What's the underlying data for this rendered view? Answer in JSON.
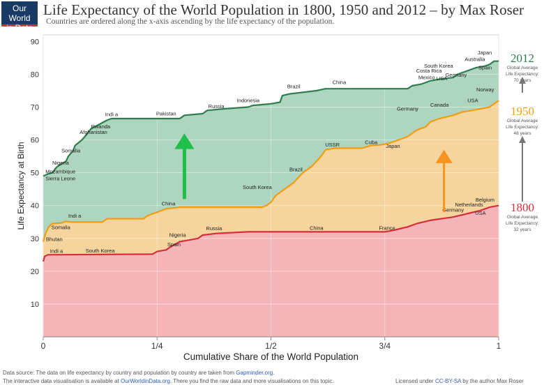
{
  "logo": {
    "line1": "Our World",
    "line2": "in Data"
  },
  "header": {
    "title": "Life Expectancy of the World Population in 1800, 1950 and 2012 – by Max Roser",
    "subtitle": "Countries are ordered along the x-axis ascending by the life expectancy of the population."
  },
  "footer": {
    "source_prefix": "Data source: The data on life expectancy by country and population by country are taken from ",
    "source_link": "Gapminder.org",
    "source_suffix": ".",
    "interactive_prefix": "The interactive data visualisation is available at ",
    "interactive_link": "OurWorldinData.org",
    "interactive_suffix": ". There you find the raw data and more visualisations on this topic.",
    "license_prefix": "Licensed under ",
    "license_link": "CC-BY-SA",
    "license_suffix": " by the author Max Roser"
  },
  "colors": {
    "s2012": "#2e7d4f",
    "s1950": "#f39c12",
    "s1800": "#d62d3a",
    "fill2012": "#a9d3bd",
    "fill1950": "#f9d49b",
    "fill1800": "#f3b3bb",
    "arrow_green": "#1fbf4a",
    "arrow_orange": "#f7931e",
    "arrow_grey": "#777777"
  },
  "chart_data": {
    "type": "area",
    "title": "Life Expectancy of the World Population in 1800, 1950 and 2012 – by Max Roser",
    "xlabel": "Cumulative Share of the World Population",
    "ylabel": "Life Expectancy at Birth",
    "xlim": [
      0,
      1
    ],
    "ylim": [
      0,
      92
    ],
    "x_ticks": [
      {
        "v": 0,
        "label": "0"
      },
      {
        "v": 0.25,
        "label": "1/4"
      },
      {
        "v": 0.5,
        "label": "1/2"
      },
      {
        "v": 0.75,
        "label": "3/4"
      },
      {
        "v": 1,
        "label": "1"
      }
    ],
    "y_ticks": [
      10,
      20,
      30,
      40,
      50,
      60,
      70,
      80,
      90
    ],
    "grid": true,
    "series": [
      {
        "name": "2012",
        "line": "s2012",
        "fill": "fill2012",
        "points": [
          [
            0,
            49
          ],
          [
            0.01,
            49.6
          ],
          [
            0.02,
            50
          ],
          [
            0.03,
            51.8
          ],
          [
            0.05,
            53.5
          ],
          [
            0.055,
            55
          ],
          [
            0.065,
            56.6
          ],
          [
            0.07,
            58.3
          ],
          [
            0.085,
            60
          ],
          [
            0.095,
            61.6
          ],
          [
            0.105,
            63.4
          ],
          [
            0.12,
            64.5
          ],
          [
            0.14,
            66
          ],
          [
            0.15,
            66.5
          ],
          [
            0.3,
            66.5
          ],
          [
            0.31,
            67.5
          ],
          [
            0.35,
            68
          ],
          [
            0.36,
            69
          ],
          [
            0.4,
            69.5
          ],
          [
            0.45,
            70
          ],
          [
            0.46,
            70.5
          ],
          [
            0.5,
            71
          ],
          [
            0.52,
            71.5
          ],
          [
            0.525,
            73.5
          ],
          [
            0.54,
            74
          ],
          [
            0.6,
            75
          ],
          [
            0.62,
            75.6
          ],
          [
            0.8,
            75.6
          ],
          [
            0.81,
            76.5
          ],
          [
            0.83,
            77
          ],
          [
            0.85,
            78
          ],
          [
            0.87,
            78.5
          ],
          [
            0.9,
            79
          ],
          [
            0.91,
            80
          ],
          [
            0.93,
            81
          ],
          [
            0.95,
            82
          ],
          [
            0.97,
            82.5
          ],
          [
            0.98,
            83
          ],
          [
            0.99,
            84
          ],
          [
            1,
            84
          ]
        ]
      },
      {
        "name": "1950",
        "line": "s1950",
        "fill": "fill1950",
        "points": [
          [
            0,
            29
          ],
          [
            0.005,
            31.5
          ],
          [
            0.012,
            33.5
          ],
          [
            0.02,
            34.5
          ],
          [
            0.04,
            34.7
          ],
          [
            0.05,
            35.2
          ],
          [
            0.06,
            35
          ],
          [
            0.13,
            35
          ],
          [
            0.14,
            36
          ],
          [
            0.22,
            36
          ],
          [
            0.23,
            37
          ],
          [
            0.25,
            38
          ],
          [
            0.27,
            39
          ],
          [
            0.3,
            39.5
          ],
          [
            0.48,
            39.5
          ],
          [
            0.49,
            40
          ],
          [
            0.5,
            41
          ],
          [
            0.51,
            43
          ],
          [
            0.53,
            45
          ],
          [
            0.55,
            47
          ],
          [
            0.56,
            48.5
          ],
          [
            0.57,
            50
          ],
          [
            0.59,
            52
          ],
          [
            0.61,
            55
          ],
          [
            0.62,
            57
          ],
          [
            0.64,
            57.5
          ],
          [
            0.7,
            57.5
          ],
          [
            0.72,
            58.3
          ],
          [
            0.74,
            58.5
          ],
          [
            0.76,
            59
          ],
          [
            0.78,
            60
          ],
          [
            0.8,
            61
          ],
          [
            0.82,
            63
          ],
          [
            0.84,
            64
          ],
          [
            0.85,
            65.5
          ],
          [
            0.87,
            66.5
          ],
          [
            0.9,
            67.5
          ],
          [
            0.92,
            68.5
          ],
          [
            0.95,
            69.2
          ],
          [
            0.98,
            70
          ],
          [
            0.99,
            71
          ],
          [
            1,
            72
          ]
        ]
      },
      {
        "name": "1800",
        "line": "s1800",
        "fill": "fill1800",
        "points": [
          [
            0,
            23
          ],
          [
            0.003,
            24.5
          ],
          [
            0.01,
            25
          ],
          [
            0.24,
            25.2
          ],
          [
            0.25,
            26
          ],
          [
            0.27,
            26.5
          ],
          [
            0.28,
            27.5
          ],
          [
            0.3,
            29
          ],
          [
            0.32,
            29.5
          ],
          [
            0.34,
            30
          ],
          [
            0.35,
            31
          ],
          [
            0.38,
            31.5
          ],
          [
            0.45,
            32
          ],
          [
            0.75,
            32
          ],
          [
            0.77,
            32.5
          ],
          [
            0.8,
            33.5
          ],
          [
            0.82,
            34.5
          ],
          [
            0.85,
            35.5
          ],
          [
            0.9,
            36.5
          ],
          [
            0.93,
            37.5
          ],
          [
            0.96,
            38.5
          ],
          [
            0.98,
            39.5
          ],
          [
            1,
            40
          ]
        ]
      }
    ],
    "annotations": [
      {
        "text": "Japan",
        "x": 0.985,
        "y": 86,
        "anchor": "end",
        "series": "2012"
      },
      {
        "text": "Australia",
        "x": 0.97,
        "y": 84,
        "anchor": "end",
        "series": "2012"
      },
      {
        "text": "Spain",
        "x": 0.985,
        "y": 81.5,
        "anchor": "end",
        "series": "2012"
      },
      {
        "text": "Germany",
        "x": 0.93,
        "y": 79.3,
        "anchor": "end",
        "series": "2012"
      },
      {
        "text": "South Korea",
        "x": 0.9,
        "y": 82,
        "anchor": "end",
        "series": "2012"
      },
      {
        "text": "Costa Rica",
        "x": 0.875,
        "y": 80.5,
        "anchor": "end",
        "series": "2012"
      },
      {
        "text": "Mexico",
        "x": 0.86,
        "y": 78.5,
        "anchor": "end",
        "series": "2012"
      },
      {
        "text": "USA",
        "x": 0.887,
        "y": 78.2,
        "anchor": "end",
        "series": "2012"
      },
      {
        "text": "China",
        "x": 0.65,
        "y": 77,
        "anchor": "middle",
        "series": "2012"
      },
      {
        "text": "Brazil",
        "x": 0.55,
        "y": 75.7,
        "anchor": "middle",
        "series": "2012"
      },
      {
        "text": "Indonesia",
        "x": 0.45,
        "y": 71.5,
        "anchor": "middle",
        "series": "2012"
      },
      {
        "text": "Russia",
        "x": 0.38,
        "y": 69.7,
        "anchor": "middle",
        "series": "2012"
      },
      {
        "text": "Pakistan",
        "x": 0.27,
        "y": 67.5,
        "anchor": "middle",
        "series": "2012"
      },
      {
        "text": "Indi a",
        "x": 0.15,
        "y": 67.2,
        "anchor": "middle",
        "series": "2012"
      },
      {
        "text": "Rwanda",
        "x": 0.105,
        "y": 63.5,
        "anchor": "start",
        "series": "2012"
      },
      {
        "text": "Afghanistan",
        "x": 0.08,
        "y": 61.8,
        "anchor": "start",
        "series": "2012"
      },
      {
        "text": "Somalia",
        "x": 0.04,
        "y": 56.2,
        "anchor": "start",
        "series": "2012"
      },
      {
        "text": "Nigeria",
        "x": 0.02,
        "y": 52.5,
        "anchor": "start",
        "series": "2012"
      },
      {
        "text": "Mozambique",
        "x": 0.005,
        "y": 49.8,
        "anchor": "start",
        "series": "2012"
      },
      {
        "text": "Sierra Leone",
        "x": 0.005,
        "y": 47.7,
        "anchor": "start",
        "series": "2012"
      },
      {
        "text": "Norway",
        "x": 0.99,
        "y": 74.8,
        "anchor": "end",
        "series": "1950"
      },
      {
        "text": "USA",
        "x": 0.955,
        "y": 71.5,
        "anchor": "end",
        "series": "1950"
      },
      {
        "text": "Canada",
        "x": 0.87,
        "y": 70.1,
        "anchor": "middle",
        "series": "1950"
      },
      {
        "text": "Germany",
        "x": 0.8,
        "y": 69,
        "anchor": "middle",
        "series": "1950"
      },
      {
        "text": "Japan",
        "x": 0.768,
        "y": 57.6,
        "anchor": "middle",
        "series": "1950"
      },
      {
        "text": "Cuba",
        "x": 0.72,
        "y": 58.8,
        "anchor": "middle",
        "series": "1950"
      },
      {
        "text": "USSR",
        "x": 0.635,
        "y": 58,
        "anchor": "middle",
        "series": "1950"
      },
      {
        "text": "Brazil",
        "x": 0.555,
        "y": 50.5,
        "anchor": "middle",
        "series": "1950"
      },
      {
        "text": "South Korea",
        "x": 0.47,
        "y": 45,
        "anchor": "middle",
        "series": "1950"
      },
      {
        "text": "China",
        "x": 0.275,
        "y": 40,
        "anchor": "middle",
        "series": "1950"
      },
      {
        "text": "Indi a",
        "x": 0.055,
        "y": 36.3,
        "anchor": "start",
        "series": "1950"
      },
      {
        "text": "Somalia",
        "x": 0.018,
        "y": 32.8,
        "anchor": "start",
        "series": "1950"
      },
      {
        "text": "Bhutan",
        "x": 0.006,
        "y": 29.2,
        "anchor": "start",
        "series": "1950"
      },
      {
        "text": "Belgium",
        "x": 0.97,
        "y": 41.2,
        "anchor": "middle",
        "series": "1800"
      },
      {
        "text": "Netherlands",
        "x": 0.935,
        "y": 39.7,
        "anchor": "middle",
        "series": "1800"
      },
      {
        "text": "Germany",
        "x": 0.9,
        "y": 38.1,
        "anchor": "middle",
        "series": "1800"
      },
      {
        "text": "USA",
        "x": 0.96,
        "y": 37.2,
        "anchor": "middle",
        "series": "1800"
      },
      {
        "text": "France",
        "x": 0.755,
        "y": 32.6,
        "anchor": "middle",
        "series": "1800"
      },
      {
        "text": "China",
        "x": 0.6,
        "y": 32.6,
        "anchor": "middle",
        "series": "1800"
      },
      {
        "text": "Russia",
        "x": 0.375,
        "y": 32.5,
        "anchor": "middle",
        "series": "1800"
      },
      {
        "text": "Nigeria",
        "x": 0.295,
        "y": 30.5,
        "anchor": "middle",
        "series": "1800"
      },
      {
        "text": "Spain",
        "x": 0.287,
        "y": 27.6,
        "anchor": "middle",
        "series": "1800"
      },
      {
        "text": "South Korea",
        "x": 0.125,
        "y": 25.7,
        "anchor": "middle",
        "series": "1800"
      },
      {
        "text": "Indi a",
        "x": 0.015,
        "y": 25.6,
        "anchor": "start",
        "series": "1800"
      }
    ],
    "legend": [
      {
        "year": "2012",
        "lines": [
          "Global Average",
          "Life Expectancy:",
          "70 years"
        ],
        "series": "2012"
      },
      {
        "year": "1950",
        "lines": [
          "Global Average",
          "Life Expectancy:",
          "48 years"
        ],
        "series": "1950"
      },
      {
        "year": "1800",
        "lines": [
          "Global Average",
          "Life Expectancy:",
          "32 years"
        ],
        "series": "1800"
      }
    ]
  }
}
